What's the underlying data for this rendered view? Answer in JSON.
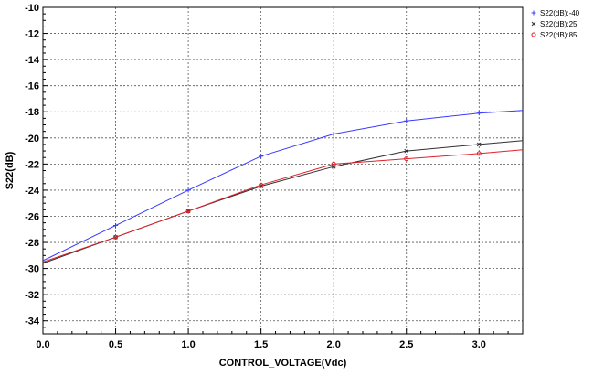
{
  "chart_data": {
    "type": "line",
    "xlabel": "CONTROL_VOLTAGE(Vdc)",
    "ylabel": "S22(dB)",
    "xlim": [
      0,
      3.3
    ],
    "ylim": [
      -35,
      -10
    ],
    "x_ticks": [
      0.0,
      0.5,
      1.0,
      1.5,
      2.0,
      2.5,
      3.0
    ],
    "x_tick_labels": [
      "0.0",
      "0.5",
      "1.0",
      "1.5",
      "2.0",
      "2.5",
      "3.0"
    ],
    "y_ticks": [
      -10,
      -12,
      -14,
      -16,
      -18,
      -20,
      -22,
      -24,
      -26,
      -28,
      -30,
      -32,
      -34
    ],
    "y_tick_labels": [
      "-10",
      "-12",
      "-14",
      "-16",
      "-18",
      "-20",
      "-22",
      "-24",
      "-26",
      "-28",
      "-30",
      "-32",
      "-34"
    ],
    "grid": true,
    "legend_position": "top-right, outside plot",
    "series": [
      {
        "name": "S22(dB):-40",
        "color": "#3a3aff",
        "marker": "+",
        "x": [
          0.0,
          0.5,
          1.0,
          1.5,
          2.0,
          2.5,
          3.0,
          3.3
        ],
        "values": [
          -29.4,
          -26.7,
          -24.0,
          -21.4,
          -19.7,
          -18.7,
          -18.1,
          -17.9
        ]
      },
      {
        "name": "S22(dB):25",
        "color": "#303030",
        "marker": "x",
        "x": [
          0.0,
          0.5,
          1.0,
          1.5,
          2.0,
          2.5,
          3.0,
          3.3
        ],
        "values": [
          -29.6,
          -27.6,
          -25.6,
          -23.7,
          -22.2,
          -21.0,
          -20.5,
          -20.2
        ]
      },
      {
        "name": "S22(dB):85",
        "color": "#e0202a",
        "marker": "o",
        "x": [
          0.0,
          0.5,
          1.0,
          1.5,
          2.0,
          2.5,
          3.0,
          3.3
        ],
        "values": [
          -29.5,
          -27.6,
          -25.6,
          -23.6,
          -22.0,
          -21.6,
          -21.2,
          -20.9
        ]
      }
    ]
  }
}
